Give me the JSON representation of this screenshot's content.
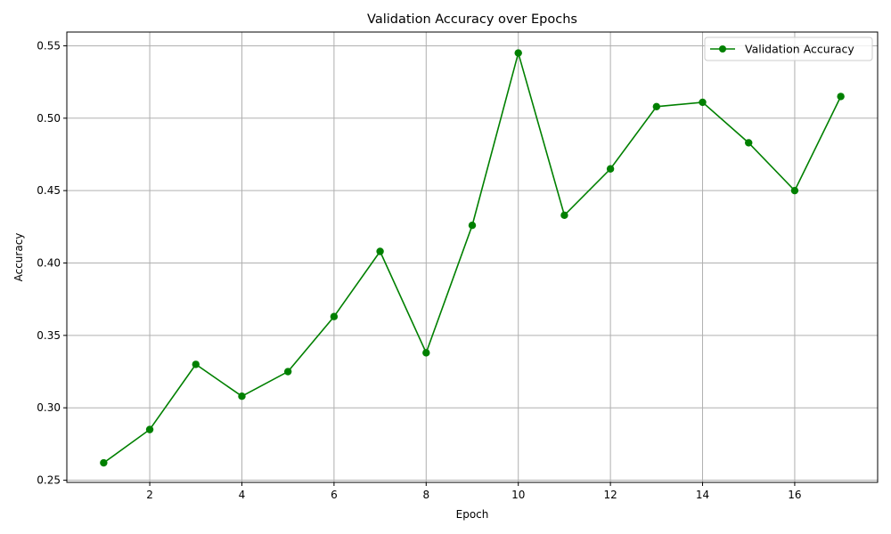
{
  "chart_data": {
    "type": "line",
    "title": "Validation Accuracy over Epochs",
    "xlabel": "Epoch",
    "ylabel": "Accuracy",
    "xlim": [
      0.2,
      17.8
    ],
    "ylim": [
      0.2485,
      0.5595
    ],
    "xticks": [
      2,
      4,
      6,
      8,
      10,
      12,
      14,
      16
    ],
    "yticks": [
      0.25,
      0.3,
      0.35,
      0.4,
      0.45,
      0.5,
      0.55
    ],
    "grid": true,
    "legend_position": "top-right",
    "series": [
      {
        "name": "Validation Accuracy",
        "color": "#008000",
        "marker": "circle",
        "x": [
          1,
          2,
          3,
          4,
          5,
          6,
          7,
          8,
          9,
          10,
          11,
          12,
          13,
          14,
          15,
          16,
          17
        ],
        "y": [
          0.262,
          0.285,
          0.33,
          0.308,
          0.325,
          0.363,
          0.408,
          0.338,
          0.426,
          0.545,
          0.433,
          0.465,
          0.508,
          0.511,
          0.483,
          0.45,
          0.515
        ]
      }
    ]
  }
}
